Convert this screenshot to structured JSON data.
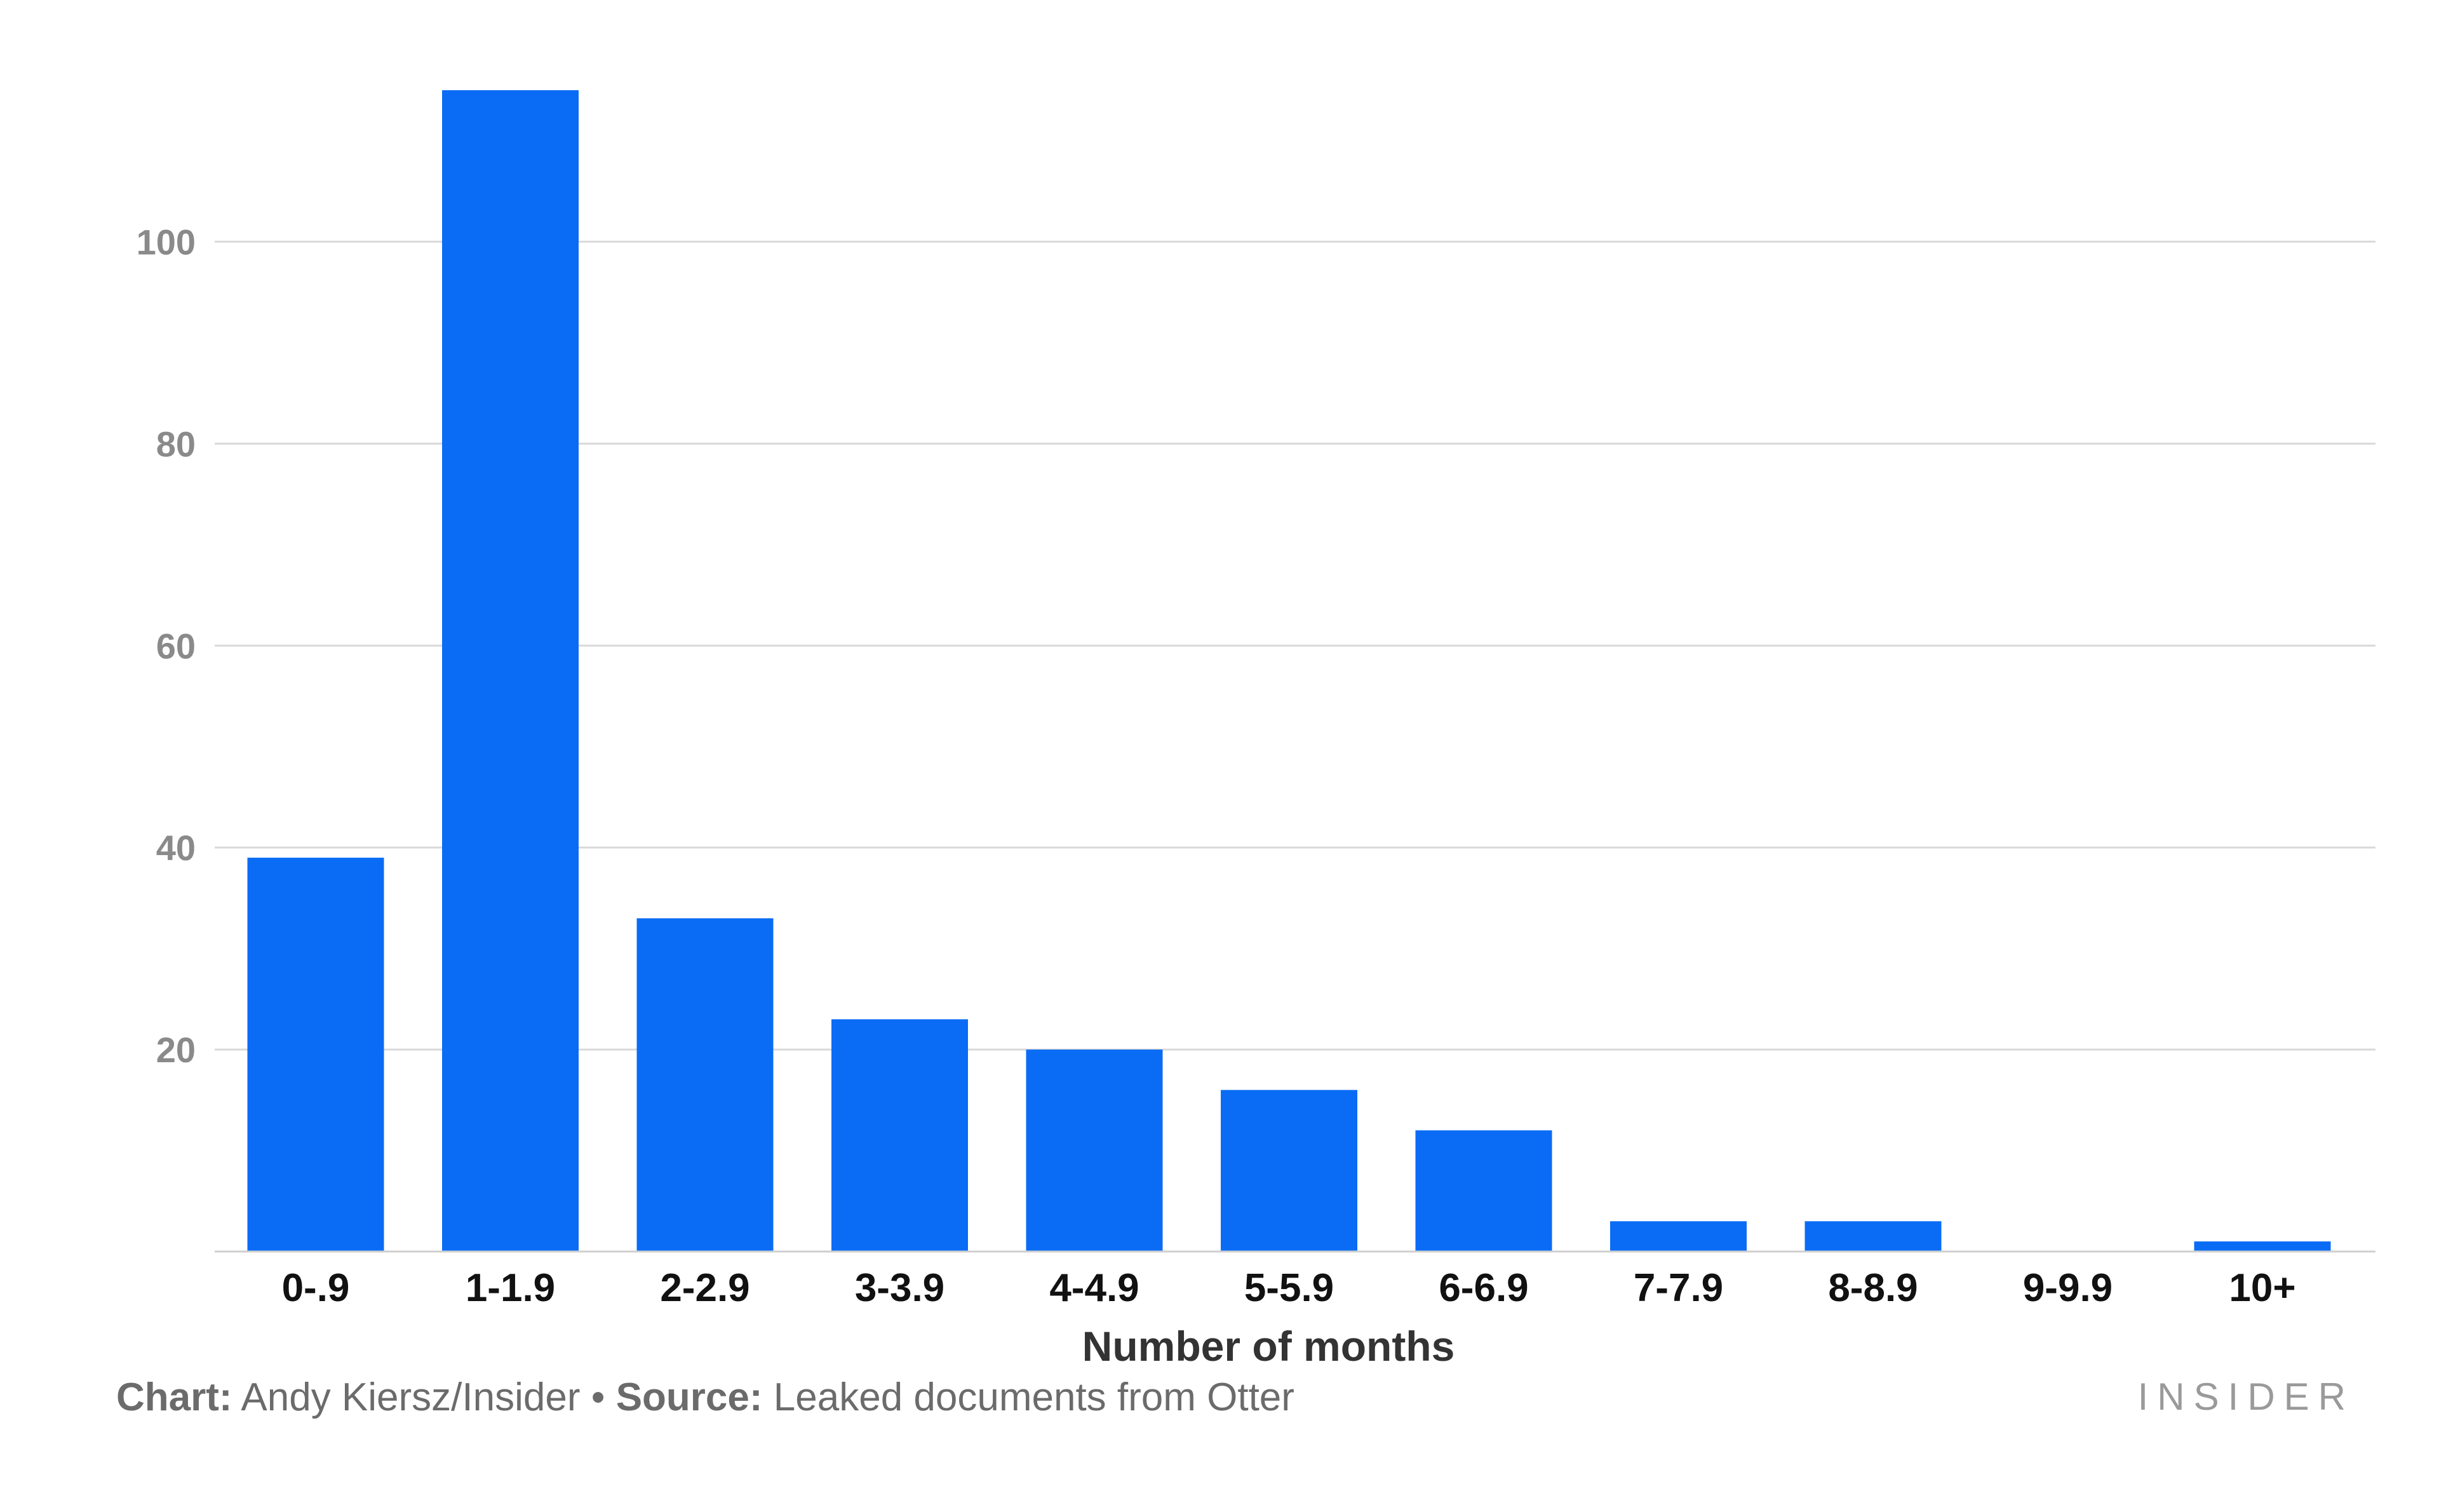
{
  "chart_data": {
    "type": "bar",
    "categories": [
      "0-.9",
      "1-1.9",
      "2-2.9",
      "3-3.9",
      "4-4.9",
      "5-5.9",
      "6-6.9",
      "7-7.9",
      "8-8.9",
      "9-9.9",
      "10+"
    ],
    "values": [
      39,
      115,
      33,
      23,
      20,
      16,
      12,
      3,
      3,
      0,
      1
    ],
    "xlabel": "Number of months",
    "ylabel": "",
    "ylim": [
      0,
      115
    ],
    "yticks": [
      20,
      40,
      60,
      80,
      100
    ],
    "grid": true,
    "bar_color": "#0a6cf5"
  },
  "footer": {
    "chart_label": "Chart:",
    "chart_value": "Andy Kiersz/Insider",
    "separator": "•",
    "source_label": "Source:",
    "source_value": "Leaked documents from Otter"
  },
  "brand": "INSIDER"
}
